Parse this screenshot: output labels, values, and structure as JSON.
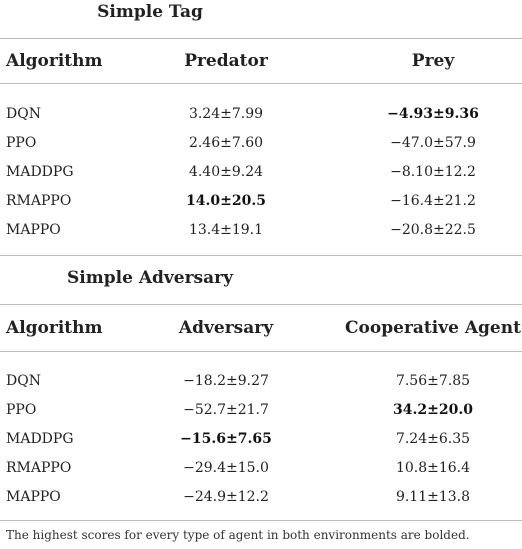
{
  "sections": [
    {
      "title": "Simple Tag",
      "headers": [
        "Algorithm",
        "Predator",
        "Prey"
      ],
      "rows": [
        {
          "algorithm": "DQN",
          "col1": "3.24±7.99",
          "col2": "−4.93±9.36"
        },
        {
          "algorithm": "PPO",
          "col1": "2.46±7.60",
          "col2": "−47.0±57.9"
        },
        {
          "algorithm": "MADDPG",
          "col1": "4.40±9.24",
          "col2": "−8.10±12.2"
        },
        {
          "algorithm": "RMAPPO",
          "col1": "14.0±20.5",
          "col2": "−16.4±21.2"
        },
        {
          "algorithm": "MAPPO",
          "col1": "13.4±19.1",
          "col2": "−20.8±22.5"
        }
      ]
    },
    {
      "title": "Simple Adversary",
      "headers": [
        "Algorithm",
        "Adversary",
        "Cooperative Agent"
      ],
      "rows": [
        {
          "algorithm": "DQN",
          "col1": "−18.2±9.27",
          "col2": "7.56±7.85"
        },
        {
          "algorithm": "PPO",
          "col1": "−52.7±21.7",
          "col2": "34.2±20.0"
        },
        {
          "algorithm": "MADDPG",
          "col1": "−15.6±7.65",
          "col2": "7.24±6.35"
        },
        {
          "algorithm": "RMAPPO",
          "col1": "−29.4±15.0",
          "col2": "10.8±16.4"
        },
        {
          "algorithm": "MAPPO",
          "col1": "−24.9±12.2",
          "col2": "9.11±13.8"
        }
      ]
    }
  ],
  "footnote": "The highest scores for every type of agent in both environments are bolded."
}
